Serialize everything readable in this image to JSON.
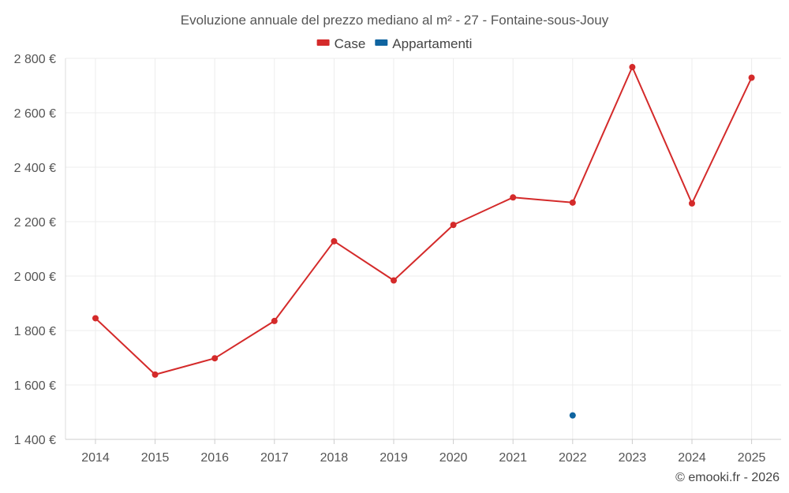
{
  "chart_data": {
    "type": "line",
    "title": "Evoluzione annuale del prezzo mediano al m² - 27 - Fontaine-sous-Jouy",
    "categories": [
      "2014",
      "2015",
      "2016",
      "2017",
      "2018",
      "2019",
      "2020",
      "2021",
      "2022",
      "2023",
      "2024",
      "2025"
    ],
    "series": [
      {
        "name": "Case",
        "color": "#d42a2a",
        "values": [
          1845,
          1638,
          1698,
          1835,
          2128,
          1984,
          2188,
          2289,
          2270,
          2768,
          2267,
          2729
        ]
      },
      {
        "name": "Appartamenti",
        "color": "#0f64a0",
        "values": [
          null,
          null,
          null,
          null,
          null,
          null,
          null,
          null,
          1488,
          null,
          null,
          null
        ]
      }
    ],
    "ylim": [
      1400,
      2800
    ],
    "yticks": [
      1400,
      1600,
      1800,
      2000,
      2200,
      2400,
      2600,
      2800
    ],
    "ytick_labels": [
      "1 400 €",
      "1 600 €",
      "1 800 €",
      "2 000 €",
      "2 200 €",
      "2 400 €",
      "2 600 €",
      "2 800 €"
    ],
    "xlabel": "",
    "ylabel": "",
    "grid": true,
    "legend_position": "top-center"
  },
  "credit": "© emooki.fr - 2026"
}
